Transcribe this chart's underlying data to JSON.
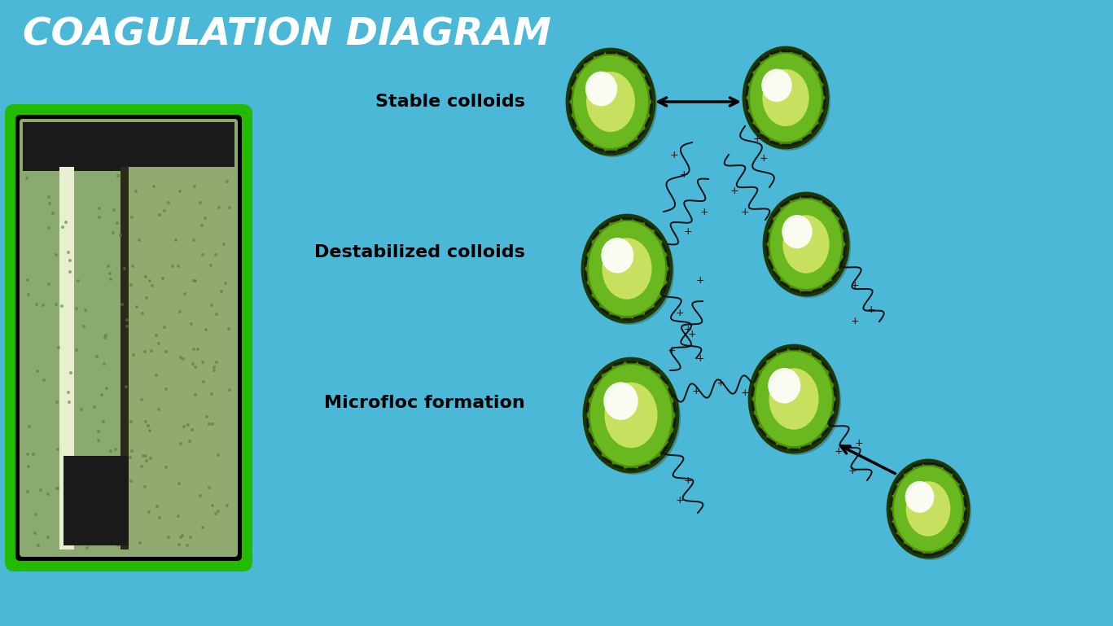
{
  "title": "COAGULATION DIAGRAM",
  "title_color": "#FFFFFF",
  "title_fontsize": 34,
  "background_color": "#4BB8D8",
  "label_stable": "Stable colloids",
  "label_destabilized": "Destabilized colloids",
  "label_microfloc": "Microfloc formation",
  "label_fontsize": 16,
  "label_color": "#000000",
  "colloid_outer_color": "#4A9000",
  "colloid_mid_color": "#6AB820",
  "colloid_inner_color": "#C8E060",
  "colloid_highlight": "#FFFFFF",
  "colloid_border_color": "#1A3A00",
  "dash_color": "#1A1A1A",
  "arrow_color": "#000000",
  "wavy_color": "#111111",
  "plus_color": "#111111",
  "photo_border_color": "#22BB00",
  "photo_inner_border": "#000000"
}
